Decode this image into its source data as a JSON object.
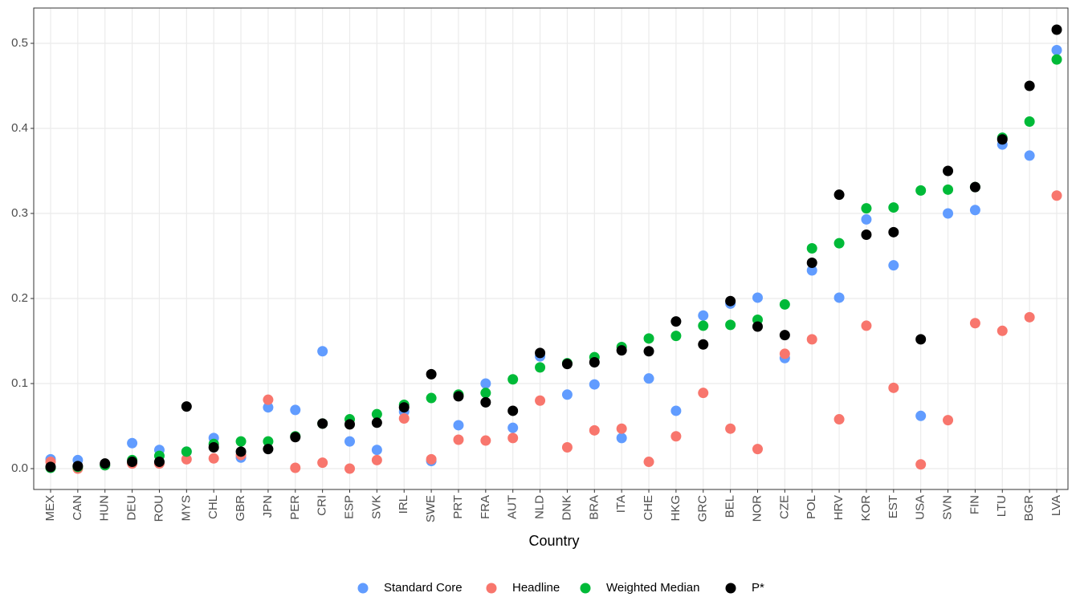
{
  "chart_data": {
    "type": "scatter",
    "x_label": "Country",
    "categories": [
      "MEX",
      "CAN",
      "HUN",
      "DEU",
      "ROU",
      "MYS",
      "CHL",
      "GBR",
      "JPN",
      "PER",
      "CRI",
      "ESP",
      "SVK",
      "IRL",
      "SWE",
      "PRT",
      "FRA",
      "AUT",
      "NLD",
      "DNK",
      "BRA",
      "ITA",
      "CHE",
      "HKG",
      "GRC",
      "BEL",
      "NOR",
      "CZE",
      "POL",
      "HRV",
      "KOR",
      "EST",
      "USA",
      "SVN",
      "FIN",
      "LTU",
      "BGR",
      "LVA"
    ],
    "series": [
      {
        "name": "Standard Core",
        "color": "#619CFF",
        "values": [
          0.011,
          0.01,
          0.004,
          0.03,
          0.022,
          0.02,
          0.036,
          0.013,
          0.072,
          0.069,
          0.138,
          0.032,
          0.022,
          0.067,
          0.009,
          0.051,
          0.1,
          0.048,
          0.132,
          0.087,
          0.099,
          0.036,
          0.106,
          0.068,
          0.18,
          0.194,
          0.201,
          0.13,
          0.233,
          0.201,
          0.293,
          0.239,
          0.062,
          0.3,
          0.304,
          0.381,
          0.368,
          0.492
        ]
      },
      {
        "name": "Headline",
        "color": "#F8766D",
        "values": [
          0.008,
          0.0,
          0.004,
          0.006,
          0.006,
          0.011,
          0.012,
          0.016,
          0.081,
          0.001,
          0.007,
          0.0,
          0.01,
          0.059,
          0.011,
          0.034,
          0.033,
          0.036,
          0.08,
          0.025,
          0.045,
          0.047,
          0.008,
          0.038,
          0.089,
          0.047,
          0.023,
          0.135,
          0.152,
          0.058,
          0.168,
          0.095,
          0.005,
          0.057,
          0.171,
          0.162,
          0.178,
          0.321
        ]
      },
      {
        "name": "Weighted Median",
        "color": "#00BA38",
        "values": [
          0.001,
          0.002,
          0.004,
          0.01,
          0.015,
          0.02,
          0.029,
          0.032,
          0.032,
          0.038,
          0.053,
          0.058,
          0.064,
          0.075,
          0.083,
          0.087,
          0.089,
          0.105,
          0.119,
          0.124,
          0.131,
          0.143,
          0.153,
          0.156,
          0.168,
          0.169,
          0.175,
          0.193,
          0.259,
          0.265,
          0.306,
          0.307,
          0.327,
          0.328,
          0.331,
          0.389,
          0.408,
          0.481
        ]
      },
      {
        "name": "P*",
        "color": "#000000",
        "values": [
          0.002,
          0.003,
          0.006,
          0.008,
          0.008,
          0.073,
          0.025,
          0.02,
          0.023,
          0.037,
          0.053,
          0.052,
          0.054,
          0.072,
          0.111,
          0.085,
          0.078,
          0.068,
          0.136,
          0.123,
          0.125,
          0.139,
          0.138,
          0.173,
          0.146,
          0.197,
          0.167,
          0.157,
          0.242,
          0.322,
          0.275,
          0.278,
          0.152,
          0.35,
          0.331,
          0.387,
          0.45,
          0.516
        ]
      }
    ],
    "ylim": [
      -0.0245,
      0.5415
    ],
    "yticks": [
      {
        "value": 0,
        "label": "0.0"
      },
      0.1,
      0.2,
      0.3,
      0.4,
      0.5
    ],
    "grid": true,
    "legend": "bottom"
  }
}
